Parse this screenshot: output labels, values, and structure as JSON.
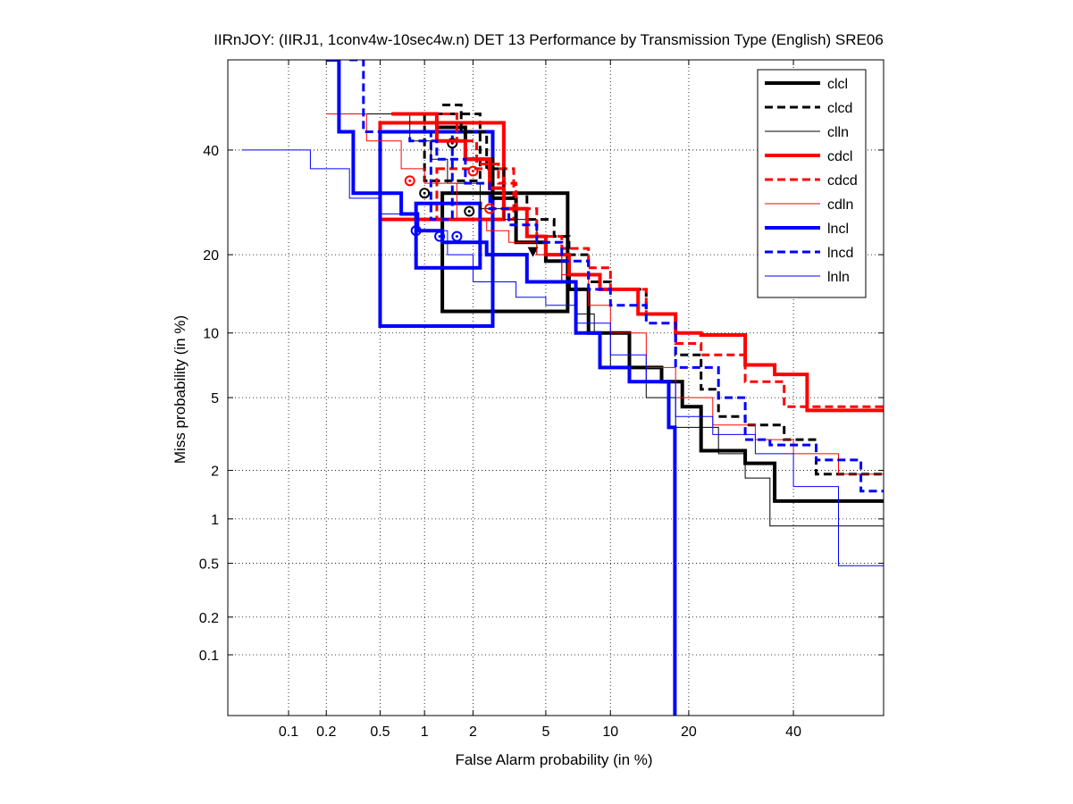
{
  "chart_data": {
    "type": "line",
    "title": "IIRnJOY: (IIRJ1, 1conv4w-10sec4w.n) DET 13 Performance by Transmission Type (English) SRE06",
    "xlabel": "False Alarm probability (in %)",
    "ylabel": "Miss probability (in %)",
    "x_scale": "normal-deviate (probit)",
    "y_scale": "normal-deviate (probit)",
    "xlim": [
      0.03,
      60
    ],
    "ylim": [
      0.03,
      60
    ],
    "x_ticks": [
      0.1,
      0.2,
      0.5,
      1,
      2,
      5,
      10,
      20,
      40
    ],
    "x_tick_labels": [
      "0.1",
      "0.2",
      "0.5",
      "1",
      "2",
      "5",
      "10",
      "20",
      "40"
    ],
    "y_ticks": [
      0.1,
      0.2,
      0.5,
      1,
      2,
      5,
      10,
      20,
      40
    ],
    "y_tick_labels": [
      "0.1",
      "0.2",
      "0.5",
      "1",
      "2",
      "5",
      "10",
      "20",
      "40"
    ],
    "grid": true,
    "legend_position": "top-right",
    "series": [
      {
        "name": "clcl",
        "color": "#000000",
        "style": "solid",
        "weight": "thick",
        "points": [
          [
            1.2,
            45
          ],
          [
            1.8,
            38
          ],
          [
            2.6,
            30
          ],
          [
            3.5,
            22
          ],
          [
            5,
            19
          ],
          [
            6.5,
            15
          ],
          [
            8,
            10
          ],
          [
            12,
            7
          ],
          [
            16,
            6
          ],
          [
            19,
            4.5
          ],
          [
            22,
            2.6
          ],
          [
            30,
            2.2
          ],
          [
            36,
            1.3
          ],
          [
            60,
            1.3
          ]
        ],
        "dcf_point": [
          1.9,
          27.5
        ],
        "eer_marker": [
          4.3,
          20.5
        ],
        "ci_box": {
          "x": [
            1.3,
            6.4
          ],
          "y": [
            12.3,
            31
          ]
        }
      },
      {
        "name": "clcd",
        "color": "#000000",
        "style": "dashed",
        "weight": "medium",
        "points": [
          [
            1.3,
            50
          ],
          [
            1.7,
            44
          ],
          [
            2.4,
            36
          ],
          [
            3,
            31
          ],
          [
            4,
            26
          ],
          [
            5.5,
            23
          ],
          [
            6.5,
            20
          ],
          [
            8,
            16
          ],
          [
            10,
            15
          ],
          [
            14,
            12
          ],
          [
            18,
            8
          ],
          [
            22,
            5.5
          ],
          [
            25,
            4
          ],
          [
            30,
            3.6
          ],
          [
            38,
            3
          ],
          [
            45,
            1.9
          ],
          [
            60,
            1.9
          ]
        ],
        "dcf_point": [
          1.5,
          41.5
        ],
        "ci_box": {
          "x": [
            1.0,
            2.2
          ],
          "y": [
            33.5,
            48
          ]
        }
      },
      {
        "name": "clln",
        "color": "#000000",
        "style": "solid",
        "weight": "thin",
        "points": [
          [
            0.3,
            48
          ],
          [
            0.8,
            42
          ],
          [
            1.1,
            38
          ],
          [
            1.4,
            33
          ],
          [
            2.2,
            28
          ],
          [
            3,
            26
          ],
          [
            4.5,
            20
          ],
          [
            6,
            16
          ],
          [
            7,
            12
          ],
          [
            8.5,
            10
          ],
          [
            10,
            7
          ],
          [
            14,
            5
          ],
          [
            18,
            3.5
          ],
          [
            25,
            2.5
          ],
          [
            30,
            1.8
          ],
          [
            35,
            0.9
          ],
          [
            60,
            0.9
          ]
        ],
        "dcf_point": [
          1.0,
          31
        ]
      },
      {
        "name": "cdcl",
        "color": "#ff0000",
        "style": "solid",
        "weight": "thick",
        "points": [
          [
            0.6,
            48
          ],
          [
            1.2,
            42
          ],
          [
            1.8,
            38
          ],
          [
            2.5,
            32
          ],
          [
            3,
            28
          ],
          [
            4,
            23
          ],
          [
            5,
            20
          ],
          [
            6.5,
            17
          ],
          [
            9,
            15
          ],
          [
            13,
            12
          ],
          [
            18,
            10
          ],
          [
            22,
            9.8
          ],
          [
            30,
            7.2
          ],
          [
            36,
            6.5
          ],
          [
            43,
            4.3
          ],
          [
            60,
            4.3
          ]
        ],
        "dcf_point": [
          2.5,
          28
        ],
        "ci_box": {
          "x": [
            0.5,
            3.0
          ],
          "y": [
            26,
            46
          ]
        }
      },
      {
        "name": "cdcd",
        "color": "#ff0000",
        "style": "dashed",
        "weight": "medium",
        "points": [
          [
            1.3,
            48
          ],
          [
            1.6,
            42
          ],
          [
            2.1,
            37
          ],
          [
            2.8,
            33
          ],
          [
            3.5,
            28
          ],
          [
            4.5,
            23
          ],
          [
            6,
            21
          ],
          [
            8,
            18
          ],
          [
            10,
            15
          ],
          [
            14,
            12
          ],
          [
            18,
            9
          ],
          [
            22,
            8
          ],
          [
            30,
            6
          ],
          [
            38,
            4.5
          ],
          [
            60,
            4.5
          ]
        ],
        "dcf_point": [
          2.0,
          35.5
        ],
        "ci_box": {
          "x": [
            1.2,
            3.4
          ],
          "y": [
            26,
            36
          ]
        }
      },
      {
        "name": "cdln",
        "color": "#ff0000",
        "style": "solid",
        "weight": "thin",
        "points": [
          [
            0.2,
            48
          ],
          [
            0.4,
            42
          ],
          [
            0.7,
            36
          ],
          [
            1.0,
            33
          ],
          [
            1.6,
            26
          ],
          [
            2.4,
            24
          ],
          [
            3.2,
            22
          ],
          [
            4.5,
            20
          ],
          [
            6,
            17
          ],
          [
            8,
            13
          ],
          [
            10,
            10
          ],
          [
            14,
            7
          ],
          [
            18,
            5
          ],
          [
            24,
            3.6
          ],
          [
            32,
            3
          ],
          [
            40,
            2.5
          ],
          [
            50,
            1.9
          ],
          [
            60,
            1.9
          ]
        ],
        "dcf_point": [
          0.8,
          33.5
        ]
      },
      {
        "name": "lncl",
        "color": "#0000ff",
        "style": "solid",
        "weight": "thick",
        "points": [
          [
            0.2,
            60
          ],
          [
            0.25,
            44
          ],
          [
            0.32,
            31
          ],
          [
            0.7,
            27
          ],
          [
            0.9,
            24
          ],
          [
            1.3,
            22
          ],
          [
            2.4,
            20
          ],
          [
            4,
            16
          ],
          [
            7,
            10
          ],
          [
            9,
            7
          ],
          [
            12,
            6
          ],
          [
            17,
            3.5
          ],
          [
            17.9,
            3.5
          ],
          [
            17.9,
            0.03
          ]
        ],
        "dcf_point": [
          0.88,
          24
        ],
        "ci_boxes": [
          {
            "x": [
              0.5,
              2.6
            ],
            "y": [
              10.7,
              44
            ]
          },
          {
            "x": [
              0.88,
              2.2
            ],
            "y": [
              18,
              29
            ]
          }
        ]
      },
      {
        "name": "lncd",
        "color": "#0000ff",
        "style": "dashed",
        "weight": "medium",
        "points": [
          [
            0.3,
            60
          ],
          [
            0.38,
            44
          ],
          [
            0.8,
            42
          ],
          [
            1.2,
            38
          ],
          [
            1.8,
            33
          ],
          [
            2.5,
            28
          ],
          [
            3.2,
            25
          ],
          [
            4.5,
            22
          ],
          [
            6,
            19
          ],
          [
            8,
            15
          ],
          [
            10,
            13
          ],
          [
            14,
            11
          ],
          [
            18,
            7
          ],
          [
            25,
            5
          ],
          [
            30,
            3
          ],
          [
            35,
            2.8
          ],
          [
            45,
            2.3
          ],
          [
            55,
            1.5
          ],
          [
            60,
            1.5
          ]
        ],
        "dcf_point": [
          1.25,
          23
        ],
        "ci_box": {
          "x": [
            1.1,
            1.5
          ],
          "y": [
            26,
            44
          ]
        }
      },
      {
        "name": "lnln",
        "color": "#0000ff",
        "style": "solid",
        "weight": "thin",
        "points": [
          [
            0.04,
            40
          ],
          [
            0.1,
            40
          ],
          [
            0.15,
            36
          ],
          [
            0.3,
            30
          ],
          [
            0.5,
            27
          ],
          [
            0.9,
            24
          ],
          [
            1.4,
            20
          ],
          [
            2,
            16
          ],
          [
            3.5,
            14
          ],
          [
            5,
            13
          ],
          [
            7,
            11
          ],
          [
            10,
            8
          ],
          [
            14,
            6
          ],
          [
            18,
            4
          ],
          [
            24,
            3.2
          ],
          [
            32,
            2.5
          ],
          [
            40,
            1.6
          ],
          [
            50,
            0.48
          ],
          [
            60,
            0.48
          ]
        ],
        "dcf_point": [
          1.6,
          23
        ]
      }
    ]
  }
}
